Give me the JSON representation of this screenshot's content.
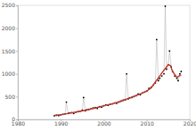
{
  "chart_data": {
    "type": "scatter",
    "xlim": [
      1980,
      2020
    ],
    "xticks": [
      1980,
      1990,
      2000,
      2010,
      2020
    ],
    "ylim": [
      0,
      2500
    ],
    "yticks": [
      0,
      500,
      1000,
      1500,
      2000,
      2500
    ],
    "grid": false,
    "series": [
      {
        "type": "scatter",
        "color": "#000000",
        "marker": "circle",
        "x": [
          1988.5,
          1989,
          1989.5,
          1990,
          1990.5,
          1991,
          1991.3,
          1991.7,
          1992,
          1992.5,
          1993,
          1993.5,
          1994,
          1994.5,
          1995,
          1995.3,
          1995.7,
          1996,
          1996.5,
          1997,
          1997.5,
          1998,
          1998.5,
          1999,
          1999.5,
          2000,
          2000.5,
          2001,
          2001.5,
          2002,
          2002.5,
          2003,
          2003.5,
          2004,
          2004.5,
          2005,
          2005.3,
          2005.7,
          2006,
          2006.5,
          2007,
          2007.5,
          2008,
          2008.5,
          2009,
          2009.5,
          2010,
          2010.5,
          2011,
          2011.5,
          2012,
          2012.3,
          2012.7,
          2013,
          2013.5,
          2014,
          2014.3,
          2014.6,
          2015,
          2015.3,
          2015.7,
          2016,
          2016.5,
          2017,
          2017.3,
          2017.7,
          2018
        ],
        "values": [
          80,
          90,
          85,
          100,
          110,
          120,
          380,
          130,
          140,
          150,
          130,
          160,
          170,
          180,
          200,
          480,
          190,
          210,
          220,
          230,
          250,
          260,
          240,
          280,
          270,
          300,
          320,
          310,
          330,
          340,
          360,
          350,
          380,
          400,
          420,
          430,
          1000,
          450,
          470,
          480,
          500,
          520,
          560,
          540,
          580,
          600,
          620,
          680,
          700,
          750,
          800,
          1750,
          850,
          900,
          950,
          1000,
          2480,
          1100,
          1200,
          1500,
          1150,
          1050,
          950,
          900,
          850,
          1000,
          1050
        ]
      },
      {
        "type": "line",
        "color": "#c0392b",
        "line_style": "solid",
        "x": [
          1988.5,
          1990,
          1992,
          1994,
          1996,
          1998,
          2000,
          2002,
          2004,
          2006,
          2008,
          2010,
          2011,
          2012,
          2013,
          2014,
          2015,
          2015.5,
          2016,
          2017,
          2018
        ],
        "values": [
          90,
          105,
          135,
          170,
          205,
          250,
          300,
          345,
          400,
          470,
          540,
          620,
          690,
          820,
          950,
          1080,
          1200,
          1180,
          1050,
          920,
          980
        ]
      }
    ]
  }
}
